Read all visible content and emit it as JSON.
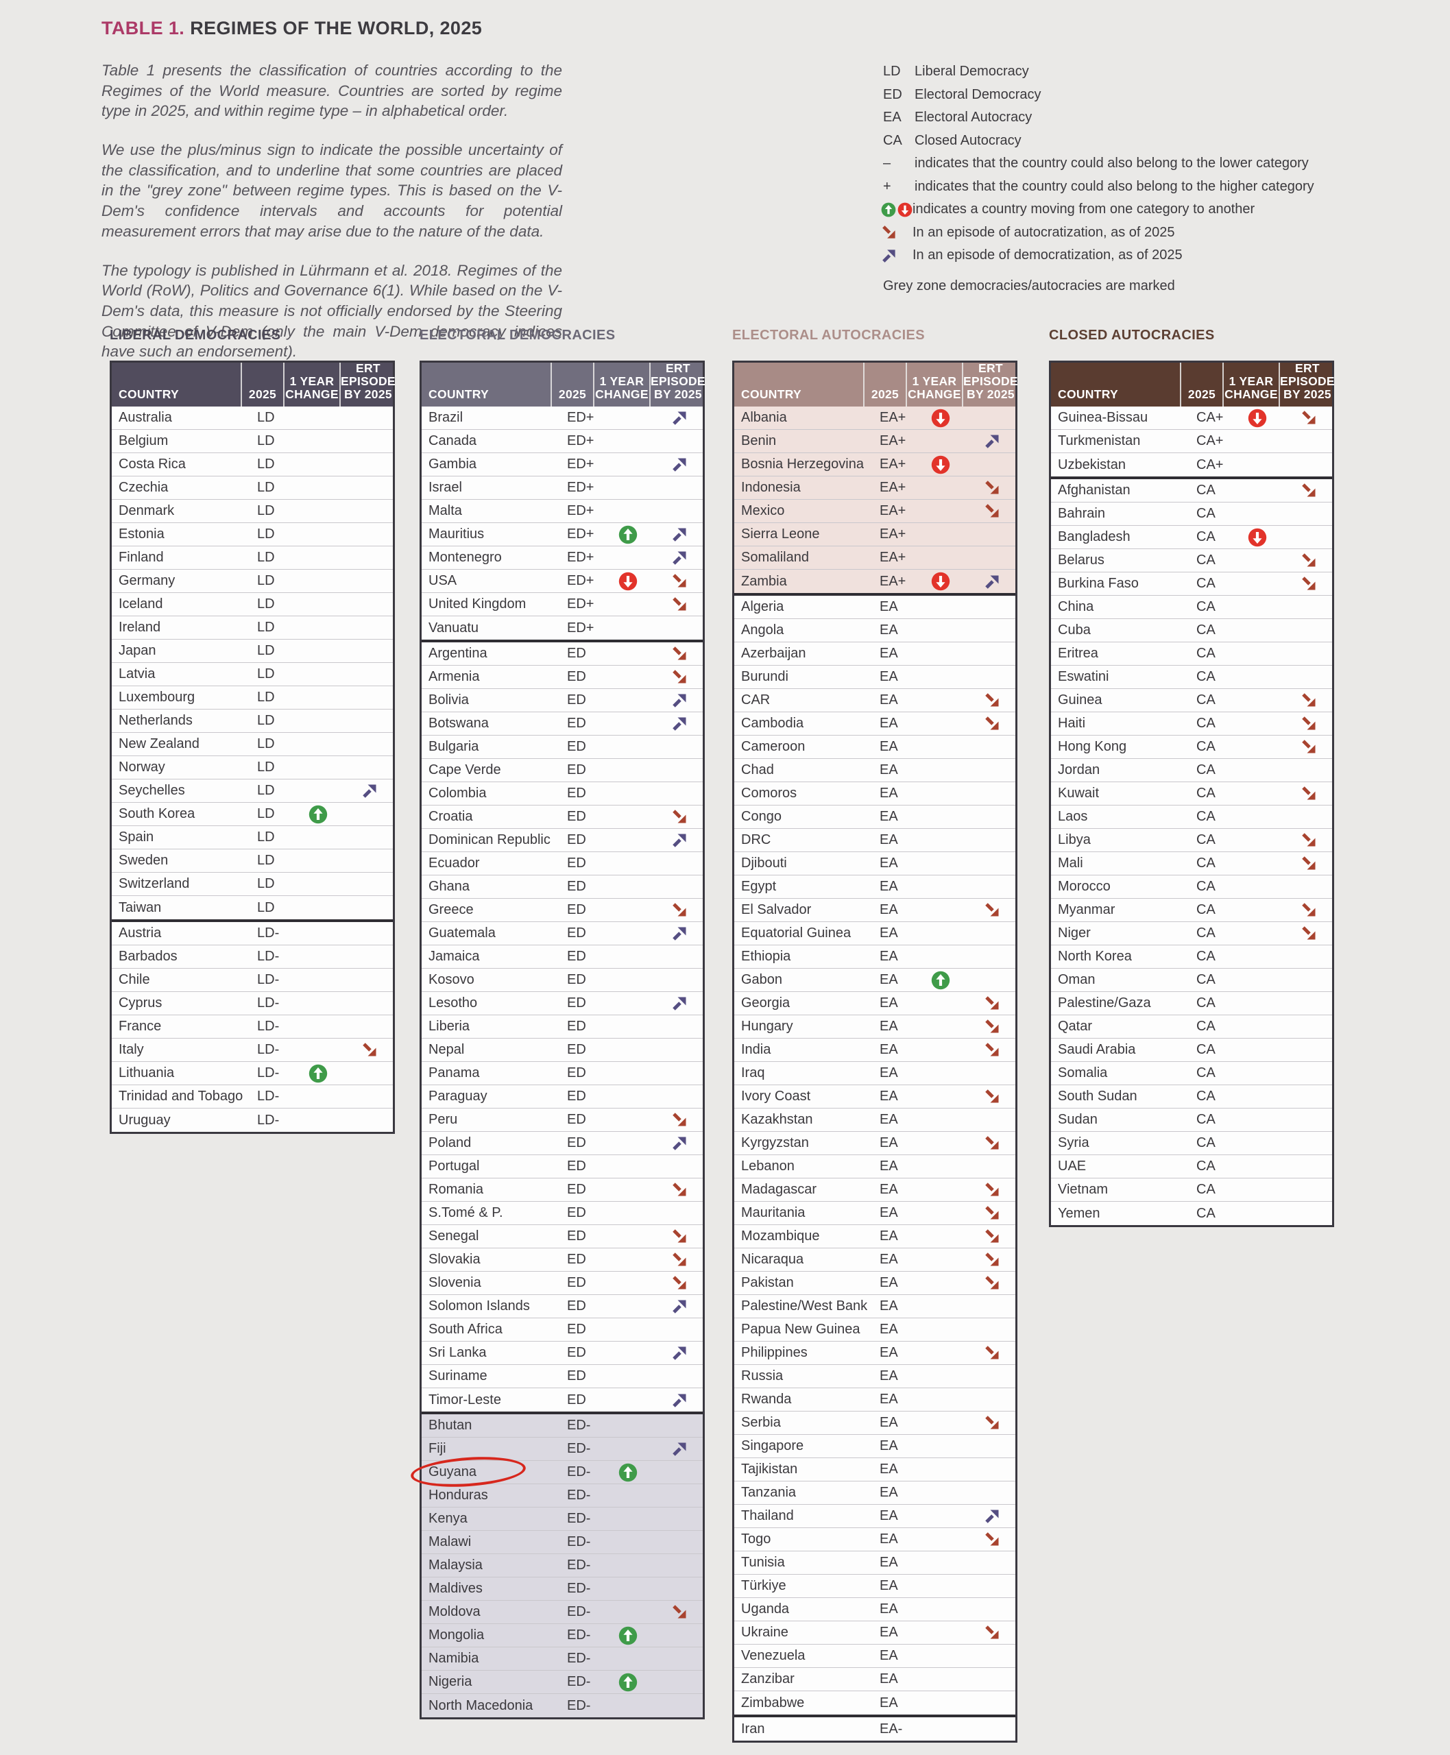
{
  "title": {
    "prefix": "TABLE 1.",
    "rest": "REGIMES OF THE WORLD, 2025"
  },
  "intro": {
    "p1": "Table 1 presents the classification of countries according to the Regimes of the World measure. Countries are sorted by regime type in 2025, and within regime type – in alphabetical order.",
    "p2": "We use the plus/minus sign to indicate the possible uncertainty of the classification, and to underline that some countries are placed in the \"grey zone\" between regime types. This is based on the V-Dem's confidence intervals and accounts for potential measurement errors that may arise due to the nature of the data.",
    "p3": "The typology is published in Lührmann et al. 2018. Regimes of the World (RoW), Politics and Governance 6(1). While based on the V-Dem's data, this measure is not officially endorsed by the Steering Committee of V-Dem (only the main V-Dem democracy indices have such an endorsement)."
  },
  "legend": {
    "items": [
      {
        "sym": "LD",
        "label": "Liberal Democracy"
      },
      {
        "sym": "ED",
        "label": "Electoral Democracy"
      },
      {
        "sym": "EA",
        "label": "Electoral Autocracy"
      },
      {
        "sym": "CA",
        "label": "Closed Autocracy"
      },
      {
        "sym": "–",
        "label": "indicates that the country could also belong to the lower category"
      },
      {
        "sym": "+",
        "label": "indicates that the country could also belong to the higher category"
      },
      {
        "icons": [
          "up",
          "down"
        ],
        "label": "indicates a country moving from one category to another"
      },
      {
        "icons": [
          "auto"
        ],
        "label": "In an episode of autocratization, as of 2025"
      },
      {
        "icons": [
          "demo"
        ],
        "label": "In an episode of democratization, as of 2025"
      }
    ],
    "footer": "Grey zone democracies/autocracies are marked"
  },
  "table_header": {
    "country": "COUNTRY",
    "year": "2025",
    "change": [
      "1 YEAR",
      "CHANGE"
    ],
    "ert": [
      "ERT",
      "EPISODE",
      "BY 2025"
    ]
  },
  "colors": {
    "accent_title": "#ac3a67",
    "ld_header": "#514c5d",
    "ld_title": "#4c4957",
    "ed_header": "#716e7e",
    "ed_title": "#6c6977",
    "ea_header": "#a88b86",
    "ea_title": "#ac8e89",
    "ca_header": "#5a3c30",
    "ca_title": "#5d4033",
    "shade_ed": "#dbd9e1",
    "shade_ea": "#f0e1dd",
    "green": "#3f9b49",
    "red": "#e2332a",
    "autocratization": "#a8432f",
    "democratization": "#554e82",
    "annotation": "#d7271d"
  },
  "tables": [
    {
      "title": "LIBERAL DEMOCRACIES",
      "theme": "ld",
      "groups": [
        {
          "code": "LD",
          "shaded": false,
          "rows": [
            {
              "c": "Australia"
            },
            {
              "c": "Belgium"
            },
            {
              "c": "Costa Rica"
            },
            {
              "c": "Czechia"
            },
            {
              "c": "Denmark"
            },
            {
              "c": "Estonia"
            },
            {
              "c": "Finland"
            },
            {
              "c": "Germany"
            },
            {
              "c": "Iceland"
            },
            {
              "c": "Ireland"
            },
            {
              "c": "Japan"
            },
            {
              "c": "Latvia"
            },
            {
              "c": "Luxembourg"
            },
            {
              "c": "Netherlands"
            },
            {
              "c": "New Zealand"
            },
            {
              "c": "Norway"
            },
            {
              "c": "Seychelles",
              "ert": "demo"
            },
            {
              "c": "South Korea",
              "chg": "up"
            },
            {
              "c": "Spain"
            },
            {
              "c": "Sweden"
            },
            {
              "c": "Switzerland"
            },
            {
              "c": "Taiwan"
            }
          ]
        },
        {
          "code": "LD-",
          "shaded": false,
          "rows": [
            {
              "c": "Austria"
            },
            {
              "c": "Barbados"
            },
            {
              "c": "Chile"
            },
            {
              "c": "Cyprus"
            },
            {
              "c": "France"
            },
            {
              "c": "Italy",
              "ert": "auto"
            },
            {
              "c": "Lithuania",
              "chg": "up"
            },
            {
              "c": "Trinidad and Tobago"
            },
            {
              "c": "Uruguay"
            }
          ]
        }
      ]
    },
    {
      "title": "ELECTORAL DEMOCRACIES",
      "theme": "ed",
      "groups": [
        {
          "code": "ED+",
          "shaded": false,
          "rows": [
            {
              "c": "Brazil",
              "ert": "demo"
            },
            {
              "c": "Canada"
            },
            {
              "c": "Gambia",
              "ert": "demo"
            },
            {
              "c": "Israel"
            },
            {
              "c": "Malta"
            },
            {
              "c": "Mauritius",
              "chg": "up",
              "ert": "demo"
            },
            {
              "c": "Montenegro",
              "ert": "demo"
            },
            {
              "c": "USA",
              "chg": "down",
              "ert": "auto"
            },
            {
              "c": "United Kingdom",
              "ert": "auto"
            },
            {
              "c": "Vanuatu"
            }
          ]
        },
        {
          "code": "ED",
          "shaded": false,
          "rows": [
            {
              "c": "Argentina",
              "ert": "auto"
            },
            {
              "c": "Armenia",
              "ert": "auto"
            },
            {
              "c": "Bolivia",
              "ert": "demo"
            },
            {
              "c": "Botswana",
              "ert": "demo"
            },
            {
              "c": "Bulgaria"
            },
            {
              "c": "Cape Verde"
            },
            {
              "c": "Colombia"
            },
            {
              "c": "Croatia",
              "ert": "auto"
            },
            {
              "c": "Dominican Republic",
              "ert": "demo"
            },
            {
              "c": "Ecuador"
            },
            {
              "c": "Ghana"
            },
            {
              "c": "Greece",
              "ert": "auto"
            },
            {
              "c": "Guatemala",
              "ert": "demo"
            },
            {
              "c": "Jamaica"
            },
            {
              "c": "Kosovo"
            },
            {
              "c": "Lesotho",
              "ert": "demo"
            },
            {
              "c": "Liberia"
            },
            {
              "c": "Nepal"
            },
            {
              "c": "Panama"
            },
            {
              "c": "Paraguay"
            },
            {
              "c": "Peru",
              "ert": "auto"
            },
            {
              "c": "Poland",
              "ert": "demo"
            },
            {
              "c": "Portugal"
            },
            {
              "c": "Romania",
              "ert": "auto"
            },
            {
              "c": "S.Tomé & P."
            },
            {
              "c": "Senegal",
              "ert": "auto"
            },
            {
              "c": "Slovakia",
              "ert": "auto"
            },
            {
              "c": "Slovenia",
              "ert": "auto"
            },
            {
              "c": "Solomon Islands",
              "ert": "demo"
            },
            {
              "c": "South Africa"
            },
            {
              "c": "Sri Lanka",
              "ert": "demo"
            },
            {
              "c": "Suriname"
            },
            {
              "c": "Timor-Leste",
              "ert": "demo"
            }
          ]
        },
        {
          "code": "ED-",
          "shaded": true,
          "rows": [
            {
              "c": "Bhutan"
            },
            {
              "c": "Fiji",
              "ert": "demo"
            },
            {
              "c": "Guyana",
              "chg": "up",
              "circle": true
            },
            {
              "c": "Honduras"
            },
            {
              "c": "Kenya"
            },
            {
              "c": "Malawi"
            },
            {
              "c": "Malaysia"
            },
            {
              "c": "Maldives"
            },
            {
              "c": "Moldova",
              "ert": "auto"
            },
            {
              "c": "Mongolia",
              "chg": "up"
            },
            {
              "c": "Namibia"
            },
            {
              "c": "Nigeria",
              "chg": "up"
            },
            {
              "c": "North Macedonia"
            }
          ]
        }
      ]
    },
    {
      "title": "ELECTORAL AUTOCRACIES",
      "theme": "ea",
      "groups": [
        {
          "code": "EA+",
          "shaded": true,
          "rows": [
            {
              "c": "Albania",
              "chg": "down"
            },
            {
              "c": "Benin",
              "ert": "demo"
            },
            {
              "c": "Bosnia Herzegovina",
              "chg": "down"
            },
            {
              "c": "Indonesia",
              "ert": "auto"
            },
            {
              "c": "Mexico",
              "ert": "auto"
            },
            {
              "c": "Sierra Leone"
            },
            {
              "c": "Somaliland"
            },
            {
              "c": "Zambia",
              "chg": "down",
              "ert": "demo"
            }
          ]
        },
        {
          "code": "EA",
          "shaded": false,
          "rows": [
            {
              "c": "Algeria"
            },
            {
              "c": "Angola"
            },
            {
              "c": "Azerbaijan"
            },
            {
              "c": "Burundi"
            },
            {
              "c": "CAR",
              "ert": "auto"
            },
            {
              "c": "Cambodia",
              "ert": "auto"
            },
            {
              "c": "Cameroon"
            },
            {
              "c": "Chad"
            },
            {
              "c": "Comoros"
            },
            {
              "c": "Congo"
            },
            {
              "c": "DRC"
            },
            {
              "c": "Djibouti"
            },
            {
              "c": "Egypt"
            },
            {
              "c": "El Salvador",
              "ert": "auto"
            },
            {
              "c": "Equatorial Guinea"
            },
            {
              "c": "Ethiopia"
            },
            {
              "c": "Gabon",
              "chg": "up"
            },
            {
              "c": "Georgia",
              "ert": "auto"
            },
            {
              "c": "Hungary",
              "ert": "auto"
            },
            {
              "c": "India",
              "ert": "auto"
            },
            {
              "c": "Iraq"
            },
            {
              "c": "Ivory Coast",
              "ert": "auto"
            },
            {
              "c": "Kazakhstan"
            },
            {
              "c": "Kyrgyzstan",
              "ert": "auto"
            },
            {
              "c": "Lebanon"
            },
            {
              "c": "Madagascar",
              "ert": "auto"
            },
            {
              "c": "Mauritania",
              "ert": "auto"
            },
            {
              "c": "Mozambique",
              "ert": "auto"
            },
            {
              "c": "Nicaraqua",
              "ert": "auto"
            },
            {
              "c": "Pakistan",
              "ert": "auto"
            },
            {
              "c": "Palestine/West Bank"
            },
            {
              "c": "Papua New Guinea"
            },
            {
              "c": "Philippines",
              "ert": "auto"
            },
            {
              "c": "Russia"
            },
            {
              "c": "Rwanda"
            },
            {
              "c": "Serbia",
              "ert": "auto"
            },
            {
              "c": "Singapore"
            },
            {
              "c": "Tajikistan"
            },
            {
              "c": "Tanzania"
            },
            {
              "c": "Thailand",
              "ert": "demo"
            },
            {
              "c": "Togo",
              "ert": "auto"
            },
            {
              "c": "Tunisia"
            },
            {
              "c": "Türkiye"
            },
            {
              "c": "Uganda"
            },
            {
              "c": "Ukraine",
              "ert": "auto"
            },
            {
              "c": "Venezuela"
            },
            {
              "c": "Zanzibar"
            },
            {
              "c": "Zimbabwe"
            }
          ]
        },
        {
          "code": "EA-",
          "shaded": false,
          "rows": [
            {
              "c": "Iran"
            }
          ]
        }
      ]
    },
    {
      "title": "CLOSED AUTOCRACIES",
      "theme": "ca",
      "groups": [
        {
          "code": "CA+",
          "shaded": false,
          "rows": [
            {
              "c": "Guinea-Bissau",
              "chg": "down",
              "ert": "auto"
            },
            {
              "c": "Turkmenistan"
            },
            {
              "c": "Uzbekistan"
            }
          ]
        },
        {
          "code": "CA",
          "shaded": false,
          "rows": [
            {
              "c": "Afghanistan",
              "ert": "auto"
            },
            {
              "c": "Bahrain"
            },
            {
              "c": "Bangladesh",
              "chg": "down"
            },
            {
              "c": "Belarus",
              "ert": "auto"
            },
            {
              "c": "Burkina Faso",
              "ert": "auto"
            },
            {
              "c": "China"
            },
            {
              "c": "Cuba"
            },
            {
              "c": "Eritrea"
            },
            {
              "c": "Eswatini"
            },
            {
              "c": "Guinea",
              "ert": "auto"
            },
            {
              "c": "Haiti",
              "ert": "auto"
            },
            {
              "c": "Hong Kong",
              "ert": "auto"
            },
            {
              "c": "Jordan"
            },
            {
              "c": "Kuwait",
              "ert": "auto"
            },
            {
              "c": "Laos"
            },
            {
              "c": "Libya",
              "ert": "auto"
            },
            {
              "c": "Mali",
              "ert": "auto"
            },
            {
              "c": "Morocco"
            },
            {
              "c": "Myanmar",
              "ert": "auto"
            },
            {
              "c": "Niger",
              "ert": "auto"
            },
            {
              "c": "North Korea"
            },
            {
              "c": "Oman"
            },
            {
              "c": "Palestine/Gaza"
            },
            {
              "c": "Qatar"
            },
            {
              "c": "Saudi Arabia"
            },
            {
              "c": "Somalia"
            },
            {
              "c": "South Sudan"
            },
            {
              "c": "Sudan"
            },
            {
              "c": "Syria"
            },
            {
              "c": "UAE"
            },
            {
              "c": "Vietnam"
            },
            {
              "c": "Yemen"
            }
          ]
        }
      ]
    }
  ]
}
